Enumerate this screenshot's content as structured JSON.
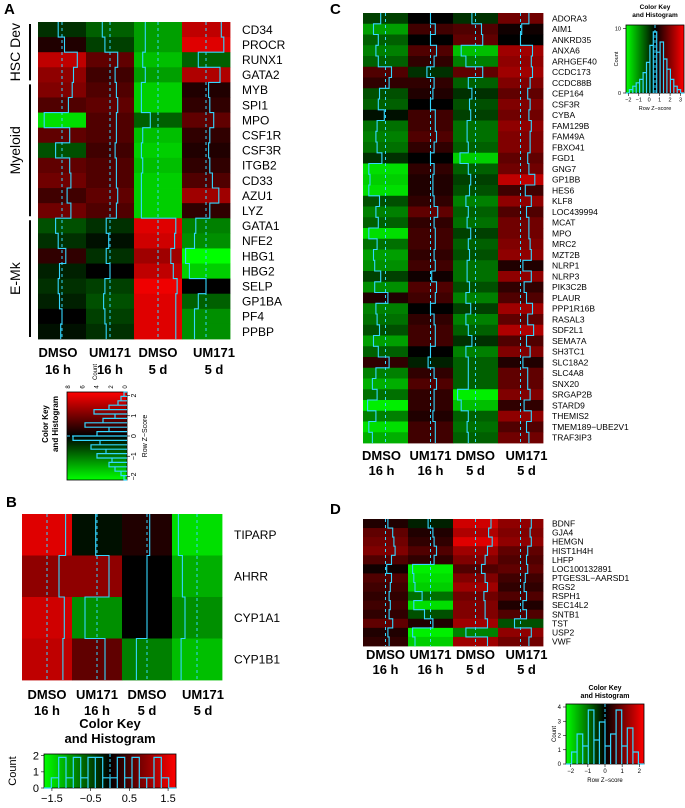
{
  "colors": {
    "low": "#00ff00",
    "mid": "#000000",
    "high": "#ff0000",
    "trace": "#33d6ff"
  },
  "chart_data": [
    {
      "panel": "A",
      "type": "heatmap",
      "columns": [
        [
          "DMSO",
          "16 h"
        ],
        [
          "UM171",
          "16 h"
        ],
        [
          "DMSO",
          "5 d"
        ],
        [
          "UM171",
          "5 d"
        ]
      ],
      "rows": [
        "CD34",
        "PROCR",
        "RUNX1",
        "GATA2",
        "MYB",
        "SPI1",
        "MPO",
        "CSF1R",
        "CSF3R",
        "ITGB2",
        "CD33",
        "AZU1",
        "LYZ",
        "GATA1",
        "NFE2",
        "HBG1",
        "HBG2",
        "SELP",
        "GP1BA",
        "PF4",
        "PPBP"
      ],
      "row_groups": [
        {
          "label": "HSC Dev",
          "start": 0,
          "end": 3
        },
        {
          "label": "Myeloid",
          "start": 4,
          "end": 12
        },
        {
          "label": "E-Mk",
          "start": 13,
          "end": 20
        }
      ],
      "values": [
        [
          -0.3,
          -0.6,
          -1.0,
          1.2
        ],
        [
          0.2,
          -0.4,
          -1.0,
          1.4
        ],
        [
          1.2,
          0.6,
          -1.2,
          -0.6
        ],
        [
          0.9,
          0.4,
          -1.0,
          1.1
        ],
        [
          0.8,
          0.5,
          -1.3,
          0.2
        ],
        [
          0.5,
          0.6,
          -1.3,
          0.3
        ],
        [
          -1.4,
          0.5,
          -0.6,
          0.6
        ],
        [
          0.6,
          0.5,
          -1.2,
          0.3
        ],
        [
          -0.5,
          0.4,
          -1.3,
          0.2
        ],
        [
          0.6,
          0.5,
          -1.2,
          0.3
        ],
        [
          0.7,
          0.5,
          -1.3,
          0.5
        ],
        [
          0.4,
          0.6,
          -1.3,
          1.0
        ],
        [
          0.7,
          0.5,
          -1.3,
          0.3
        ],
        [
          -0.5,
          -0.3,
          1.4,
          -0.8
        ],
        [
          -0.3,
          -0.1,
          1.3,
          -0.9
        ],
        [
          0.3,
          -0.3,
          1.0,
          -1.6
        ],
        [
          -0.2,
          0.0,
          1.2,
          -1.3
        ],
        [
          -0.3,
          -0.4,
          1.5,
          0.0
        ],
        [
          -0.2,
          -0.5,
          1.4,
          -0.6
        ],
        [
          0.0,
          -0.4,
          1.4,
          -0.9
        ],
        [
          -0.1,
          -0.3,
          1.4,
          -0.9
        ]
      ],
      "key": {
        "title_lines": [
          "Color Key",
          "and Histogram"
        ],
        "x_label": "Row Z−Score",
        "x_ticks": [
          "−2",
          "−1",
          "0",
          "1",
          "2"
        ],
        "y_label": "Count",
        "y_ticks": [
          "0",
          "2",
          "4",
          "6",
          "8"
        ]
      }
    },
    {
      "panel": "B",
      "type": "heatmap",
      "columns": [
        [
          "DMSO",
          "16 h"
        ],
        [
          "UM171",
          "16 h"
        ],
        [
          "DMSO",
          "5 d"
        ],
        [
          "UM171",
          "5 d"
        ]
      ],
      "rows": [
        "TIPARP",
        "AHRR",
        "CYP1A1",
        "CYP1B1"
      ],
      "values": [
        [
          1.4,
          -0.1,
          0.2,
          -1.4
        ],
        [
          0.9,
          0.9,
          0.0,
          -1.1
        ],
        [
          1.3,
          -0.9,
          0.0,
          -0.9
        ],
        [
          1.2,
          0.6,
          -0.8,
          -1.2
        ]
      ],
      "key": {
        "title_lines": [
          "Color Key",
          "and Histogram"
        ],
        "x_label": "Row Z−Score",
        "x_ticks": [
          "−1.5",
          "−0.5",
          "0.5",
          "1.5"
        ],
        "y_label": "Count",
        "y_ticks": [
          "0",
          "1",
          "2"
        ]
      }
    },
    {
      "panel": "C",
      "type": "heatmap",
      "columns": [
        [
          "DMSO",
          "16 h"
        ],
        [
          "UM171",
          "16 h"
        ],
        [
          "DMSO",
          "5 d"
        ],
        [
          "UM171",
          "5 d"
        ]
      ],
      "rows": [
        "ADORA3",
        "AIM1",
        "ANKRD35",
        "ANXA6",
        "ARHGEF40",
        "CCDC173",
        "CCDC88B",
        "CEP164",
        "CSF3R",
        "CYBA",
        "FAM129B",
        "FAM49A",
        "FBXO41",
        "FGD1",
        "GNG7",
        "GP1BB",
        "HES6",
        "KLF8",
        "LOC439994",
        "MCAT",
        "MPO",
        "MRC2",
        "MZT2B",
        "NLRP1",
        "NLRP3",
        "PIK3C2B",
        "PLAUR",
        "PPP1R16B",
        "RASAL3",
        "SDF2L1",
        "SEMA7A",
        "SH3TC1",
        "SLC18A2",
        "SLC4A8",
        "SNX20",
        "SRGAP2B",
        "STARD9",
        "THEMIS2",
        "TMEM189−UBE2V1",
        "TRAF3IP3"
      ],
      "values": [
        [
          -0.4,
          0.0,
          -0.3,
          0.7
        ],
        [
          -1.0,
          0.4,
          0.5,
          0.1
        ],
        [
          -0.6,
          0.0,
          0.6,
          0.0
        ],
        [
          -0.8,
          0.5,
          -1.2,
          1.0
        ],
        [
          -0.6,
          0.3,
          -0.8,
          0.9
        ],
        [
          0.5,
          -0.3,
          0.6,
          1.0
        ],
        [
          0.3,
          0.3,
          -0.6,
          0.8
        ],
        [
          -0.5,
          0.2,
          -0.3,
          0.6
        ],
        [
          -0.6,
          0.0,
          -0.5,
          0.8
        ],
        [
          -0.1,
          0.4,
          -0.4,
          0.7
        ],
        [
          -0.7,
          0.4,
          -0.7,
          0.9
        ],
        [
          -0.8,
          0.5,
          -0.7,
          0.8
        ],
        [
          -0.7,
          0.3,
          -0.6,
          0.8
        ],
        [
          -0.3,
          0.0,
          -1.3,
          0.6
        ],
        [
          -1.4,
          0.3,
          -0.6,
          0.7
        ],
        [
          -1.3,
          0.2,
          -0.4,
          1.2
        ],
        [
          -1.4,
          0.2,
          -0.5,
          0.4
        ],
        [
          -0.5,
          0.3,
          -0.8,
          0.9
        ],
        [
          -0.8,
          0.6,
          -0.6,
          0.5
        ],
        [
          -0.6,
          0.3,
          -0.7,
          0.7
        ],
        [
          -1.4,
          0.4,
          -0.4,
          0.7
        ],
        [
          -0.7,
          0.4,
          -0.6,
          0.8
        ],
        [
          -1.0,
          0.3,
          -0.5,
          0.9
        ],
        [
          -0.9,
          0.4,
          -0.7,
          0.2
        ],
        [
          -0.4,
          0.1,
          -0.7,
          0.9
        ],
        [
          -0.9,
          0.5,
          -0.5,
          0.3
        ],
        [
          0.2,
          0.4,
          -0.8,
          0.5
        ],
        [
          -0.8,
          0.0,
          -0.4,
          1.0
        ],
        [
          -0.7,
          0.3,
          -0.8,
          0.6
        ],
        [
          -0.5,
          0.4,
          -0.6,
          1.1
        ],
        [
          -1.0,
          0.4,
          -0.3,
          0.5
        ],
        [
          -0.6,
          0.0,
          -0.8,
          0.8
        ],
        [
          0.3,
          -0.2,
          -0.6,
          0.2
        ],
        [
          -0.8,
          0.3,
          -0.6,
          0.6
        ],
        [
          -1.1,
          0.5,
          -0.6,
          0.6
        ],
        [
          -0.7,
          0.3,
          -1.5,
          0.8
        ],
        [
          -1.5,
          0.3,
          -1.2,
          0.3
        ],
        [
          -0.8,
          0.2,
          -0.6,
          0.9
        ],
        [
          -1.4,
          0.4,
          -0.7,
          0.5
        ],
        [
          -1.1,
          0.4,
          -0.6,
          0.7
        ]
      ],
      "key": {
        "title_lines": [
          "Color Key",
          "and Histogram"
        ],
        "x_label": "Row Z−score",
        "x_ticks": [
          "−2",
          "−1",
          "0",
          "1",
          "2",
          "3"
        ],
        "y_label": "Count",
        "y_ticks": [
          "0",
          "10"
        ]
      }
    },
    {
      "panel": "D",
      "type": "heatmap",
      "columns": [
        [
          "DMSO",
          "16 h"
        ],
        [
          "UM171",
          "16 h"
        ],
        [
          "DMSO",
          "5 d"
        ],
        [
          "UM171",
          "5 d"
        ]
      ],
      "rows": [
        "BDNF",
        "GJA4",
        "HEMGN",
        "HIST1H4H",
        "LHFP",
        "LOC100132891",
        "PTGES3L−AARSD1",
        "RGS2",
        "RSPH1",
        "SEC14L2",
        "SNTB1",
        "TST",
        "USP2",
        "VWF"
      ],
      "values": [
        [
          0.2,
          -0.2,
          1.3,
          0.9
        ],
        [
          0.6,
          0.2,
          1.1,
          0.8
        ],
        [
          0.7,
          0.3,
          1.4,
          0.9
        ],
        [
          0.8,
          0.5,
          1.0,
          0.6
        ],
        [
          0.5,
          0.3,
          0.8,
          0.5
        ],
        [
          0.1,
          -1.5,
          0.5,
          0.6
        ],
        [
          0.5,
          -1.4,
          0.8,
          0.4
        ],
        [
          0.4,
          -1.3,
          1.0,
          0.3
        ],
        [
          0.3,
          -0.7,
          0.7,
          0.5
        ],
        [
          0.4,
          -1.4,
          0.8,
          0.2
        ],
        [
          0.3,
          -0.5,
          0.8,
          0.5
        ],
        [
          0.6,
          0.2,
          1.0,
          -0.5
        ],
        [
          0.2,
          -1.5,
          -0.8,
          0.9
        ],
        [
          0.3,
          -1.3,
          1.0,
          0.7
        ]
      ],
      "key": {
        "title_lines": [
          "Color Key",
          "and Histogram"
        ],
        "x_label": "Row Z−score",
        "x_ticks": [
          "−2",
          "−1",
          "0",
          "1",
          "2"
        ],
        "y_label": "Count",
        "y_ticks": [
          "0",
          "1",
          "2",
          "3",
          "4"
        ]
      }
    }
  ]
}
